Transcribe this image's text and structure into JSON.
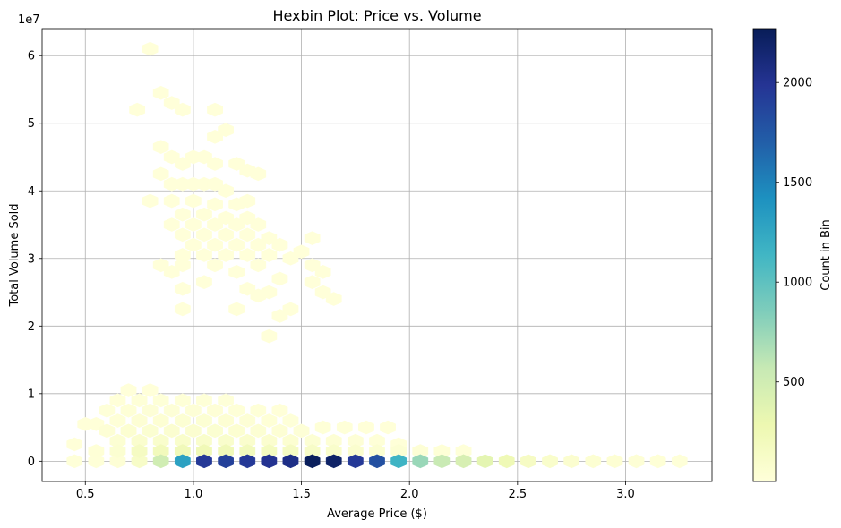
{
  "chart_data": {
    "type": "hexbin",
    "title": "Hexbin Plot: Price vs. Volume",
    "xlabel": "Average Price ($)",
    "ylabel": "Total Volume Sold",
    "y_offset_label": "1e7",
    "y_scale": 10000000,
    "xlim": [
      0.3,
      3.4
    ],
    "ylim": [
      -3000000,
      64000000
    ],
    "x_ticks": [
      0.5,
      1.0,
      1.5,
      2.0,
      2.5,
      3.0
    ],
    "x_tick_labels": [
      "0.5",
      "1.0",
      "1.5",
      "2.0",
      "2.5",
      "3.0"
    ],
    "y_ticks": [
      0,
      10000000,
      20000000,
      30000000,
      40000000,
      50000000,
      60000000
    ],
    "y_tick_labels": [
      "0",
      "1",
      "2",
      "3",
      "4",
      "5",
      "6"
    ],
    "grid": true,
    "colormap": "YlGnBu",
    "colorbar": {
      "label": "Count in Bin",
      "min": 1,
      "max": 2270,
      "ticks": [
        500,
        1000,
        1500,
        2000
      ],
      "tick_labels": [
        "500",
        "1000",
        "1500",
        "2000"
      ]
    },
    "bins": [
      {
        "x": 0.8,
        "y": 61.0,
        "c": 1
      },
      {
        "x": 0.85,
        "y": 54.5,
        "c": 1
      },
      {
        "x": 0.74,
        "y": 52.0,
        "c": 1
      },
      {
        "x": 0.9,
        "y": 53.0,
        "c": 2
      },
      {
        "x": 0.95,
        "y": 52.0,
        "c": 2
      },
      {
        "x": 1.1,
        "y": 52.0,
        "c": 1
      },
      {
        "x": 1.15,
        "y": 49.0,
        "c": 2
      },
      {
        "x": 1.1,
        "y": 48.0,
        "c": 3
      },
      {
        "x": 0.85,
        "y": 46.5,
        "c": 2
      },
      {
        "x": 0.9,
        "y": 45.0,
        "c": 3
      },
      {
        "x": 0.95,
        "y": 44.0,
        "c": 3
      },
      {
        "x": 1.0,
        "y": 45.0,
        "c": 3
      },
      {
        "x": 1.05,
        "y": 45.0,
        "c": 3
      },
      {
        "x": 1.1,
        "y": 44.0,
        "c": 4
      },
      {
        "x": 1.2,
        "y": 44.0,
        "c": 2
      },
      {
        "x": 1.25,
        "y": 43.0,
        "c": 2
      },
      {
        "x": 1.3,
        "y": 42.5,
        "c": 2
      },
      {
        "x": 0.85,
        "y": 42.5,
        "c": 3
      },
      {
        "x": 0.9,
        "y": 41.0,
        "c": 4
      },
      {
        "x": 0.95,
        "y": 41.0,
        "c": 4
      },
      {
        "x": 1.0,
        "y": 41.0,
        "c": 4
      },
      {
        "x": 1.05,
        "y": 41.0,
        "c": 4
      },
      {
        "x": 1.1,
        "y": 41.0,
        "c": 4
      },
      {
        "x": 1.15,
        "y": 40.0,
        "c": 3
      },
      {
        "x": 0.8,
        "y": 38.5,
        "c": 3
      },
      {
        "x": 0.9,
        "y": 38.5,
        "c": 4
      },
      {
        "x": 1.0,
        "y": 38.5,
        "c": 4
      },
      {
        "x": 1.1,
        "y": 38.0,
        "c": 4
      },
      {
        "x": 1.2,
        "y": 38.0,
        "c": 3
      },
      {
        "x": 1.25,
        "y": 38.5,
        "c": 2
      },
      {
        "x": 0.95,
        "y": 36.5,
        "c": 4
      },
      {
        "x": 1.05,
        "y": 36.5,
        "c": 5
      },
      {
        "x": 1.15,
        "y": 36.0,
        "c": 4
      },
      {
        "x": 1.25,
        "y": 36.0,
        "c": 3
      },
      {
        "x": 0.9,
        "y": 35.0,
        "c": 3
      },
      {
        "x": 1.0,
        "y": 35.0,
        "c": 4
      },
      {
        "x": 1.1,
        "y": 35.0,
        "c": 4
      },
      {
        "x": 1.2,
        "y": 35.0,
        "c": 4
      },
      {
        "x": 1.3,
        "y": 35.0,
        "c": 3
      },
      {
        "x": 0.95,
        "y": 33.5,
        "c": 3
      },
      {
        "x": 1.05,
        "y": 33.5,
        "c": 4
      },
      {
        "x": 1.15,
        "y": 33.5,
        "c": 5
      },
      {
        "x": 1.25,
        "y": 33.5,
        "c": 4
      },
      {
        "x": 1.35,
        "y": 33.0,
        "c": 3
      },
      {
        "x": 1.0,
        "y": 32.0,
        "c": 3
      },
      {
        "x": 1.1,
        "y": 32.0,
        "c": 4
      },
      {
        "x": 1.2,
        "y": 32.0,
        "c": 4
      },
      {
        "x": 1.3,
        "y": 32.0,
        "c": 3
      },
      {
        "x": 1.4,
        "y": 32.0,
        "c": 2
      },
      {
        "x": 1.55,
        "y": 33.0,
        "c": 1
      },
      {
        "x": 0.95,
        "y": 30.5,
        "c": 3
      },
      {
        "x": 1.05,
        "y": 30.5,
        "c": 3
      },
      {
        "x": 1.15,
        "y": 30.5,
        "c": 3
      },
      {
        "x": 1.25,
        "y": 30.5,
        "c": 3
      },
      {
        "x": 1.35,
        "y": 30.5,
        "c": 2
      },
      {
        "x": 1.45,
        "y": 30.0,
        "c": 2
      },
      {
        "x": 1.5,
        "y": 31.0,
        "c": 1
      },
      {
        "x": 0.85,
        "y": 29.0,
        "c": 2
      },
      {
        "x": 0.95,
        "y": 29.0,
        "c": 2
      },
      {
        "x": 1.1,
        "y": 29.0,
        "c": 2
      },
      {
        "x": 1.3,
        "y": 29.0,
        "c": 2
      },
      {
        "x": 1.55,
        "y": 29.0,
        "c": 2
      },
      {
        "x": 1.6,
        "y": 28.0,
        "c": 1
      },
      {
        "x": 0.9,
        "y": 28.0,
        "c": 2
      },
      {
        "x": 1.2,
        "y": 28.0,
        "c": 2
      },
      {
        "x": 1.4,
        "y": 27.0,
        "c": 1
      },
      {
        "x": 1.05,
        "y": 26.5,
        "c": 1
      },
      {
        "x": 1.55,
        "y": 26.5,
        "c": 1
      },
      {
        "x": 0.95,
        "y": 25.5,
        "c": 1
      },
      {
        "x": 1.25,
        "y": 25.5,
        "c": 1
      },
      {
        "x": 1.3,
        "y": 24.5,
        "c": 1
      },
      {
        "x": 1.35,
        "y": 25.0,
        "c": 1
      },
      {
        "x": 1.6,
        "y": 25.0,
        "c": 1
      },
      {
        "x": 1.65,
        "y": 24.0,
        "c": 1
      },
      {
        "x": 0.95,
        "y": 22.5,
        "c": 1
      },
      {
        "x": 1.2,
        "y": 22.5,
        "c": 1
      },
      {
        "x": 1.45,
        "y": 22.5,
        "c": 1
      },
      {
        "x": 1.4,
        "y": 21.5,
        "c": 1
      },
      {
        "x": 1.35,
        "y": 18.5,
        "c": 1
      },
      {
        "x": 0.7,
        "y": 10.5,
        "c": 3
      },
      {
        "x": 0.8,
        "y": 10.5,
        "c": 4
      },
      {
        "x": 0.65,
        "y": 9.0,
        "c": 8
      },
      {
        "x": 0.75,
        "y": 9.0,
        "c": 15
      },
      {
        "x": 0.85,
        "y": 9.0,
        "c": 15
      },
      {
        "x": 0.95,
        "y": 9.0,
        "c": 12
      },
      {
        "x": 1.05,
        "y": 9.0,
        "c": 12
      },
      {
        "x": 1.15,
        "y": 9.0,
        "c": 10
      },
      {
        "x": 0.6,
        "y": 7.5,
        "c": 10
      },
      {
        "x": 0.7,
        "y": 7.5,
        "c": 20
      },
      {
        "x": 0.8,
        "y": 7.5,
        "c": 25
      },
      {
        "x": 0.9,
        "y": 7.5,
        "c": 25
      },
      {
        "x": 1.0,
        "y": 7.5,
        "c": 25
      },
      {
        "x": 1.1,
        "y": 7.5,
        "c": 22
      },
      {
        "x": 1.2,
        "y": 7.5,
        "c": 18
      },
      {
        "x": 1.3,
        "y": 7.5,
        "c": 12
      },
      {
        "x": 1.4,
        "y": 7.5,
        "c": 6
      },
      {
        "x": 0.65,
        "y": 6.0,
        "c": 18
      },
      {
        "x": 0.75,
        "y": 6.0,
        "c": 35
      },
      {
        "x": 0.85,
        "y": 6.0,
        "c": 40
      },
      {
        "x": 0.95,
        "y": 6.0,
        "c": 45
      },
      {
        "x": 1.05,
        "y": 6.0,
        "c": 45
      },
      {
        "x": 1.15,
        "y": 6.0,
        "c": 40
      },
      {
        "x": 1.25,
        "y": 6.0,
        "c": 30
      },
      {
        "x": 1.35,
        "y": 6.0,
        "c": 20
      },
      {
        "x": 1.45,
        "y": 6.0,
        "c": 10
      },
      {
        "x": 0.5,
        "y": 5.5,
        "c": 5
      },
      {
        "x": 0.55,
        "y": 5.5,
        "c": 8
      },
      {
        "x": 0.6,
        "y": 4.5,
        "c": 30
      },
      {
        "x": 0.7,
        "y": 4.5,
        "c": 55
      },
      {
        "x": 0.8,
        "y": 4.5,
        "c": 60
      },
      {
        "x": 0.9,
        "y": 4.5,
        "c": 65
      },
      {
        "x": 1.0,
        "y": 4.5,
        "c": 65
      },
      {
        "x": 1.1,
        "y": 4.5,
        "c": 60
      },
      {
        "x": 1.2,
        "y": 4.5,
        "c": 55
      },
      {
        "x": 1.3,
        "y": 4.5,
        "c": 45
      },
      {
        "x": 1.4,
        "y": 4.5,
        "c": 35
      },
      {
        "x": 1.5,
        "y": 4.5,
        "c": 25
      },
      {
        "x": 1.6,
        "y": 5.0,
        "c": 15
      },
      {
        "x": 1.7,
        "y": 5.0,
        "c": 10
      },
      {
        "x": 1.8,
        "y": 5.0,
        "c": 8
      },
      {
        "x": 1.9,
        "y": 5.0,
        "c": 5
      },
      {
        "x": 0.65,
        "y": 3.0,
        "c": 45
      },
      {
        "x": 0.75,
        "y": 3.0,
        "c": 80
      },
      {
        "x": 0.85,
        "y": 3.0,
        "c": 90
      },
      {
        "x": 0.95,
        "y": 3.0,
        "c": 100
      },
      {
        "x": 1.05,
        "y": 3.0,
        "c": 100
      },
      {
        "x": 1.15,
        "y": 3.0,
        "c": 95
      },
      {
        "x": 1.25,
        "y": 3.0,
        "c": 85
      },
      {
        "x": 1.35,
        "y": 3.0,
        "c": 70
      },
      {
        "x": 1.45,
        "y": 3.0,
        "c": 55
      },
      {
        "x": 1.55,
        "y": 3.0,
        "c": 45
      },
      {
        "x": 1.65,
        "y": 3.0,
        "c": 35
      },
      {
        "x": 1.75,
        "y": 3.0,
        "c": 25
      },
      {
        "x": 1.85,
        "y": 3.0,
        "c": 15
      },
      {
        "x": 1.95,
        "y": 2.5,
        "c": 8
      },
      {
        "x": 0.45,
        "y": 2.5,
        "c": 5
      },
      {
        "x": 0.55,
        "y": 1.5,
        "c": 20
      },
      {
        "x": 0.65,
        "y": 1.5,
        "c": 60
      },
      {
        "x": 0.75,
        "y": 1.5,
        "c": 160
      },
      {
        "x": 0.85,
        "y": 1.5,
        "c": 210
      },
      {
        "x": 0.95,
        "y": 1.5,
        "c": 230
      },
      {
        "x": 1.05,
        "y": 1.5,
        "c": 240
      },
      {
        "x": 1.15,
        "y": 1.5,
        "c": 230
      },
      {
        "x": 1.25,
        "y": 1.5,
        "c": 200
      },
      {
        "x": 1.35,
        "y": 1.5,
        "c": 180
      },
      {
        "x": 1.45,
        "y": 1.5,
        "c": 160
      },
      {
        "x": 1.55,
        "y": 1.5,
        "c": 130
      },
      {
        "x": 1.65,
        "y": 1.5,
        "c": 100
      },
      {
        "x": 1.75,
        "y": 1.5,
        "c": 80
      },
      {
        "x": 1.85,
        "y": 1.5,
        "c": 60
      },
      {
        "x": 1.95,
        "y": 1.5,
        "c": 45
      },
      {
        "x": 2.05,
        "y": 1.5,
        "c": 30
      },
      {
        "x": 2.15,
        "y": 1.5,
        "c": 20
      },
      {
        "x": 2.25,
        "y": 1.5,
        "c": 10
      },
      {
        "x": 0.45,
        "y": 0.0,
        "c": 10
      },
      {
        "x": 0.55,
        "y": 0.0,
        "c": 15
      },
      {
        "x": 0.65,
        "y": 0.0,
        "c": 30
      },
      {
        "x": 0.75,
        "y": 0.0,
        "c": 120
      },
      {
        "x": 0.85,
        "y": 0.0,
        "c": 500
      },
      {
        "x": 0.95,
        "y": 0.0,
        "c": 1300
      },
      {
        "x": 1.05,
        "y": 0.0,
        "c": 1950
      },
      {
        "x": 1.15,
        "y": 0.0,
        "c": 1900
      },
      {
        "x": 1.25,
        "y": 0.0,
        "c": 1950
      },
      {
        "x": 1.35,
        "y": 0.0,
        "c": 2000
      },
      {
        "x": 1.45,
        "y": 0.0,
        "c": 2050
      },
      {
        "x": 1.55,
        "y": 0.0,
        "c": 2250
      },
      {
        "x": 1.65,
        "y": 0.0,
        "c": 2200
      },
      {
        "x": 1.75,
        "y": 0.0,
        "c": 1950
      },
      {
        "x": 1.85,
        "y": 0.0,
        "c": 1800
      },
      {
        "x": 1.95,
        "y": 0.0,
        "c": 1150
      },
      {
        "x": 2.05,
        "y": 0.0,
        "c": 750
      },
      {
        "x": 2.15,
        "y": 0.0,
        "c": 550
      },
      {
        "x": 2.25,
        "y": 0.0,
        "c": 450
      },
      {
        "x": 2.35,
        "y": 0.0,
        "c": 350
      },
      {
        "x": 2.45,
        "y": 0.0,
        "c": 250
      },
      {
        "x": 2.55,
        "y": 0.0,
        "c": 150
      },
      {
        "x": 2.65,
        "y": 0.0,
        "c": 100
      },
      {
        "x": 2.75,
        "y": 0.0,
        "c": 70
      },
      {
        "x": 2.85,
        "y": 0.0,
        "c": 50
      },
      {
        "x": 2.95,
        "y": 0.0,
        "c": 40
      },
      {
        "x": 3.05,
        "y": 0.0,
        "c": 30
      },
      {
        "x": 3.15,
        "y": 0.0,
        "c": 20
      },
      {
        "x": 3.25,
        "y": 0.0,
        "c": 10
      }
    ]
  },
  "colors": {
    "grid": "#b0b0b0",
    "axis": "#000000",
    "colormap_stops": [
      "#ffffd9",
      "#edf8b1",
      "#c7e9b4",
      "#7fcdbb",
      "#41b6c4",
      "#1d91c0",
      "#225ea8",
      "#253494",
      "#081d58"
    ]
  }
}
